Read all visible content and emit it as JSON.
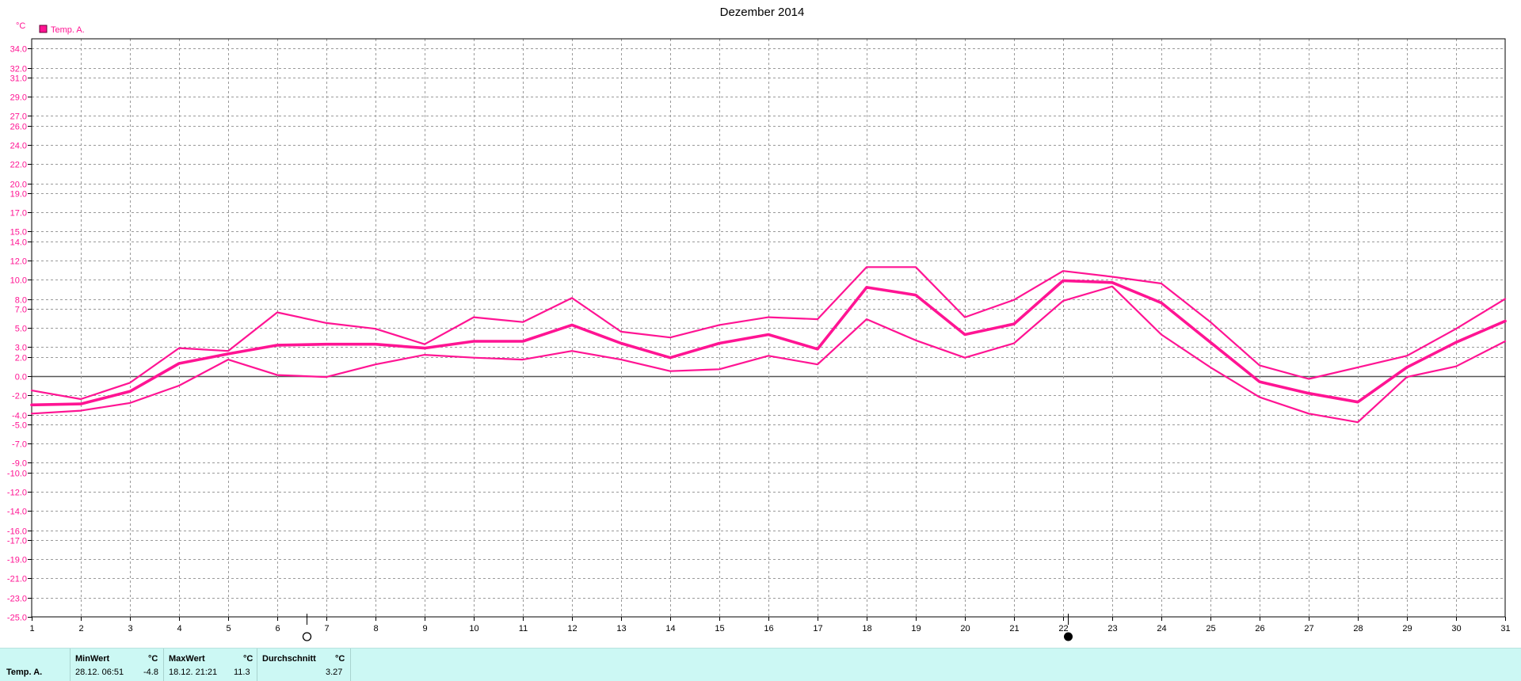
{
  "chart_data": {
    "type": "line",
    "title": "Dezember 2014",
    "ylabel": "°C",
    "legend": {
      "label": "Temp. A.",
      "color": "#ff1493",
      "placement": "top-left"
    },
    "x": [
      1,
      2,
      3,
      4,
      5,
      6,
      7,
      8,
      9,
      10,
      11,
      12,
      13,
      14,
      15,
      16,
      17,
      18,
      19,
      20,
      21,
      22,
      23,
      24,
      25,
      26,
      27,
      28,
      29,
      30,
      31
    ],
    "xlim": [
      1,
      31
    ],
    "ylim": [
      -25,
      35
    ],
    "y_ticks": [
      "34.0",
      "32.0",
      "31.0",
      "29.0",
      "27.0",
      "26.0",
      "24.0",
      "22.0",
      "20.0",
      "19.0",
      "17.0",
      "15.0",
      "14.0",
      "12.0",
      "10.0",
      "8.0",
      "7.0",
      "5.0",
      "3.0",
      "2.0",
      "0.0",
      "-2.0",
      "-4.0",
      "-5.0",
      "-7.0",
      "-9.0",
      "-10.0",
      "-12.0",
      "-14.0",
      "-16.0",
      "-17.0",
      "-19.0",
      "-21.0",
      "-23.0",
      "-25.0"
    ],
    "grid": true,
    "zero_line": true,
    "moon_phases": [
      {
        "day": 6.6,
        "phase": "full-moon"
      },
      {
        "day": 22.1,
        "phase": "new-moon"
      }
    ],
    "series": [
      {
        "role": "max",
        "stroke": 2.2,
        "values": [
          -1.5,
          -2.4,
          -0.7,
          2.9,
          2.6,
          6.6,
          5.5,
          4.9,
          3.3,
          6.1,
          5.6,
          8.1,
          4.6,
          4.0,
          5.3,
          6.1,
          5.9,
          11.3,
          11.3,
          6.1,
          7.9,
          10.9,
          10.3,
          9.6,
          5.6,
          1.1,
          -0.3,
          0.9,
          2.1,
          4.9,
          8.0
        ]
      },
      {
        "role": "mean",
        "stroke": 3.6,
        "values": [
          -3.0,
          -2.9,
          -1.6,
          1.3,
          2.3,
          3.2,
          3.3,
          3.3,
          2.9,
          3.6,
          3.6,
          5.3,
          3.4,
          1.9,
          3.4,
          4.3,
          2.8,
          9.2,
          8.4,
          4.3,
          5.4,
          9.9,
          9.7,
          7.6,
          3.5,
          -0.6,
          -1.8,
          -2.7,
          0.9,
          3.5,
          5.7
        ]
      },
      {
        "role": "min",
        "stroke": 2.2,
        "values": [
          -3.9,
          -3.6,
          -2.8,
          -1.0,
          1.7,
          0.1,
          -0.1,
          1.2,
          2.2,
          1.9,
          1.7,
          2.6,
          1.7,
          0.5,
          0.7,
          2.1,
          1.2,
          5.9,
          3.7,
          1.9,
          3.4,
          7.8,
          9.3,
          4.3,
          0.9,
          -2.2,
          -3.9,
          -4.8,
          -0.1,
          1.0,
          3.6
        ]
      }
    ]
  },
  "stats": {
    "series_label": "Temp. A.",
    "min": {
      "header": "MinWert",
      "unit": "°C",
      "datetime": "28.12.  06:51",
      "value": "-4.8"
    },
    "max": {
      "header": "MaxWert",
      "unit": "°C",
      "datetime": "18.12.  21:21",
      "value": "11.3"
    },
    "avg": {
      "header": "Durchschnitt",
      "unit": "°C",
      "value": "3.27"
    }
  }
}
